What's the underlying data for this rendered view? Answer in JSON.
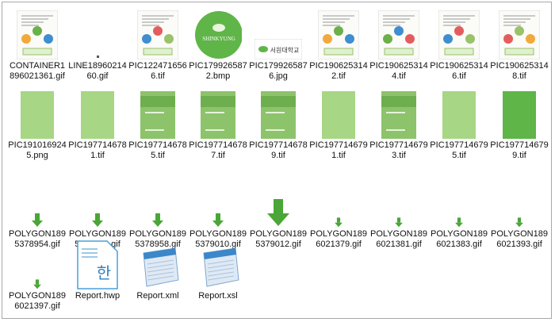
{
  "files": [
    {
      "name": "CONTAINER1896021361.gif",
      "kind": "diagram-thumbnail"
    },
    {
      "name": "LINE1896021460.gif",
      "kind": "tiny-dot"
    },
    {
      "name": "PIC1224716566.tif",
      "kind": "diagram-thumbnail"
    },
    {
      "name": "PIC1799265872.bmp",
      "kind": "green-circle-logo"
    },
    {
      "name": "PIC1799265876.jpg",
      "kind": "school-logo"
    },
    {
      "name": "PIC1906253142.tif",
      "kind": "diagram-thumbnail"
    },
    {
      "name": "PIC1906253144.tif",
      "kind": "diagram-thumbnail"
    },
    {
      "name": "PIC1906253146.tif",
      "kind": "diagram-thumbnail"
    },
    {
      "name": "PIC1906253148.tif",
      "kind": "diagram-thumbnail"
    },
    {
      "name": "PIC1910169245.png",
      "kind": "green-page"
    },
    {
      "name": "PIC1977146781.tif",
      "kind": "green-page"
    },
    {
      "name": "PIC1977146785.tif",
      "kind": "green-cover"
    },
    {
      "name": "PIC1977146787.tif",
      "kind": "green-cover"
    },
    {
      "name": "PIC1977146789.tif",
      "kind": "green-cover"
    },
    {
      "name": "PIC1977146791.tif",
      "kind": "green-page"
    },
    {
      "name": "PIC1977146793.tif",
      "kind": "green-cover"
    },
    {
      "name": "PIC1977146795.tif",
      "kind": "green-page"
    },
    {
      "name": "PIC1977146799.tif",
      "kind": "green-page-dark"
    },
    {
      "name": "POLYGON1895378954.gif",
      "kind": "down-arrow"
    },
    {
      "name": "POLYGON1895378956.gif",
      "kind": "down-arrow"
    },
    {
      "name": "POLYGON1895378958.gif",
      "kind": "down-arrow"
    },
    {
      "name": "POLYGON1895379010.gif",
      "kind": "down-arrow"
    },
    {
      "name": "POLYGON1895379012.gif",
      "kind": "down-arrow-large"
    },
    {
      "name": "POLYGON1896021379.gif",
      "kind": "down-arrow-small"
    },
    {
      "name": "POLYGON1896021381.gif",
      "kind": "down-arrow-small"
    },
    {
      "name": "POLYGON1896021383.gif",
      "kind": "down-arrow-small"
    },
    {
      "name": "POLYGON1896021393.gif",
      "kind": "down-arrow-small"
    },
    {
      "name": "POLYGON1896021397.gif",
      "kind": "down-arrow-small"
    },
    {
      "name": "Report.hwp",
      "kind": "hwp-document-icon"
    },
    {
      "name": "Report.xml",
      "kind": "notepad-icon"
    },
    {
      "name": "Report.xsl",
      "kind": "notepad-icon"
    }
  ],
  "text_in_thumbnails": {
    "circle_logo": "SHINKYUNG",
    "school_logo": "서원대학교",
    "hwp_glyph": "한"
  },
  "colors": {
    "green_light": "#a7d685",
    "green_mid": "#8cc36b",
    "green_dark": "#5fb548",
    "arrow_green": "#4aa637",
    "notepad_blue": "#3b87c9"
  }
}
